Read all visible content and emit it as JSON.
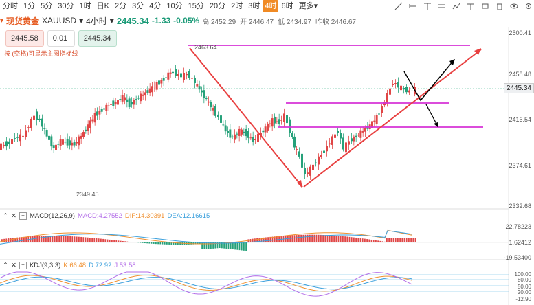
{
  "timeframes": [
    "分时",
    "1分",
    "5分",
    "30分",
    "1时",
    "日K",
    "2分",
    "3分",
    "4分",
    "10分",
    "15分",
    "20分",
    "2时",
    "3时",
    "4时",
    "6时",
    "更多▾"
  ],
  "active_timeframe": "4时",
  "tools": [
    "line-draw-icon",
    "hline-icon",
    "ray-icon",
    "text-icon",
    "ruler-icon",
    "pencil-icon",
    "eraser-icon",
    "delete-icon",
    "eye-icon",
    "settings-icon"
  ],
  "symbol": {
    "name": "现货黄金",
    "code": "XAUUSD",
    "period": "4小时",
    "price": "2445.34",
    "change": "-1.33",
    "change_pct": "-0.05%",
    "stats": [
      {
        "k": "高",
        "v": "2452.29"
      },
      {
        "k": "开",
        "v": "2446.47"
      },
      {
        "k": "低",
        "v": "2434.97"
      },
      {
        "k": "昨收",
        "v": "2446.67"
      }
    ]
  },
  "trade": {
    "sell": "2445.58",
    "qty": "0.01",
    "buy": "2445.34"
  },
  "hint": "按 (空格)可显示主图指标线",
  "yaxis": [
    "2500.41",
    "2458.48",
    "2416.54",
    "2374.61",
    "2332.68"
  ],
  "current_price_tag": "2445.34",
  "annotations": {
    "high": "2463.64",
    "low": "2349.45"
  },
  "macd": {
    "name": "MACD(12,26,9)",
    "macd": "MACD:4.27552",
    "dif": "DIF:14.30391",
    "dea": "DEA:12.16615",
    "axis": [
      "22.78223",
      "1.62412",
      "-19.53400"
    ]
  },
  "kdj": {
    "name": "KDJ(9,3,3)",
    "k": "K:66.48",
    "d": "D:72.92",
    "j": "J:53.58",
    "axis": [
      "100.00",
      "80.00",
      "50.00",
      "20.00",
      "-12.90"
    ]
  },
  "colors": {
    "up": "#e04646",
    "down": "#26a17a",
    "line": "#e84040",
    "level": "#d633d6"
  }
}
